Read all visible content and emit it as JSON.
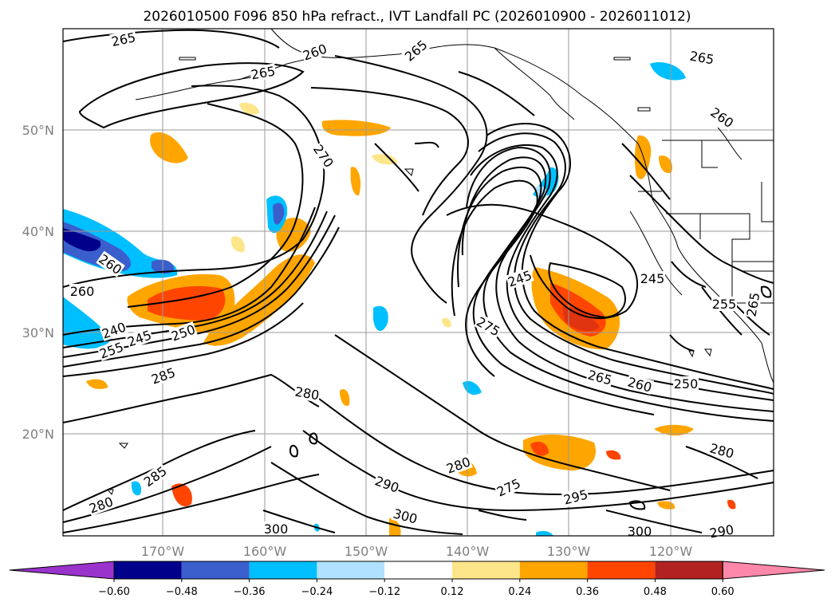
{
  "title": "2026010500 F096 850 hPa refract., IVT Landfall PC (2026010900 - 2026011012)",
  "lat_ticks": [
    "50°N",
    "40°N",
    "30°N",
    "20°N"
  ],
  "lon_ticks": [
    "170°W",
    "160°W",
    "150°W",
    "140°W",
    "130°W",
    "120°W"
  ],
  "colorbar": {
    "ticks": [
      "−0.60",
      "−0.48",
      "−0.36",
      "−0.24",
      "−0.12",
      "0.12",
      "0.24",
      "0.36",
      "0.48",
      "0.60"
    ],
    "colors": [
      "#9933cc",
      "#00008b",
      "#3a5fcd",
      "#00bfff",
      "#b0e2ff",
      "#ffffff",
      "#fde68a",
      "#ffa500",
      "#ff4500",
      "#b22222",
      "#ff88aa"
    ]
  },
  "contour_labels": [
    "265",
    "260",
    "265",
    "265",
    "260",
    "270",
    "260",
    "265",
    "245",
    "245",
    "255",
    "265",
    "260",
    "240",
    "245",
    "250",
    "255",
    "275",
    "285",
    "280",
    "265",
    "260",
    "250",
    "285",
    "280",
    "280",
    "290",
    "275",
    "295",
    "300",
    "280",
    "300",
    "300",
    "290"
  ],
  "colors": {
    "light_yellow": "#fde68a",
    "orange": "#ffa500",
    "red_orange": "#ff4500",
    "light_blue": "#b0e2ff",
    "deep_sky_blue": "#00bfff",
    "royal_blue": "#3a5fcd",
    "navy": "#00008b"
  }
}
